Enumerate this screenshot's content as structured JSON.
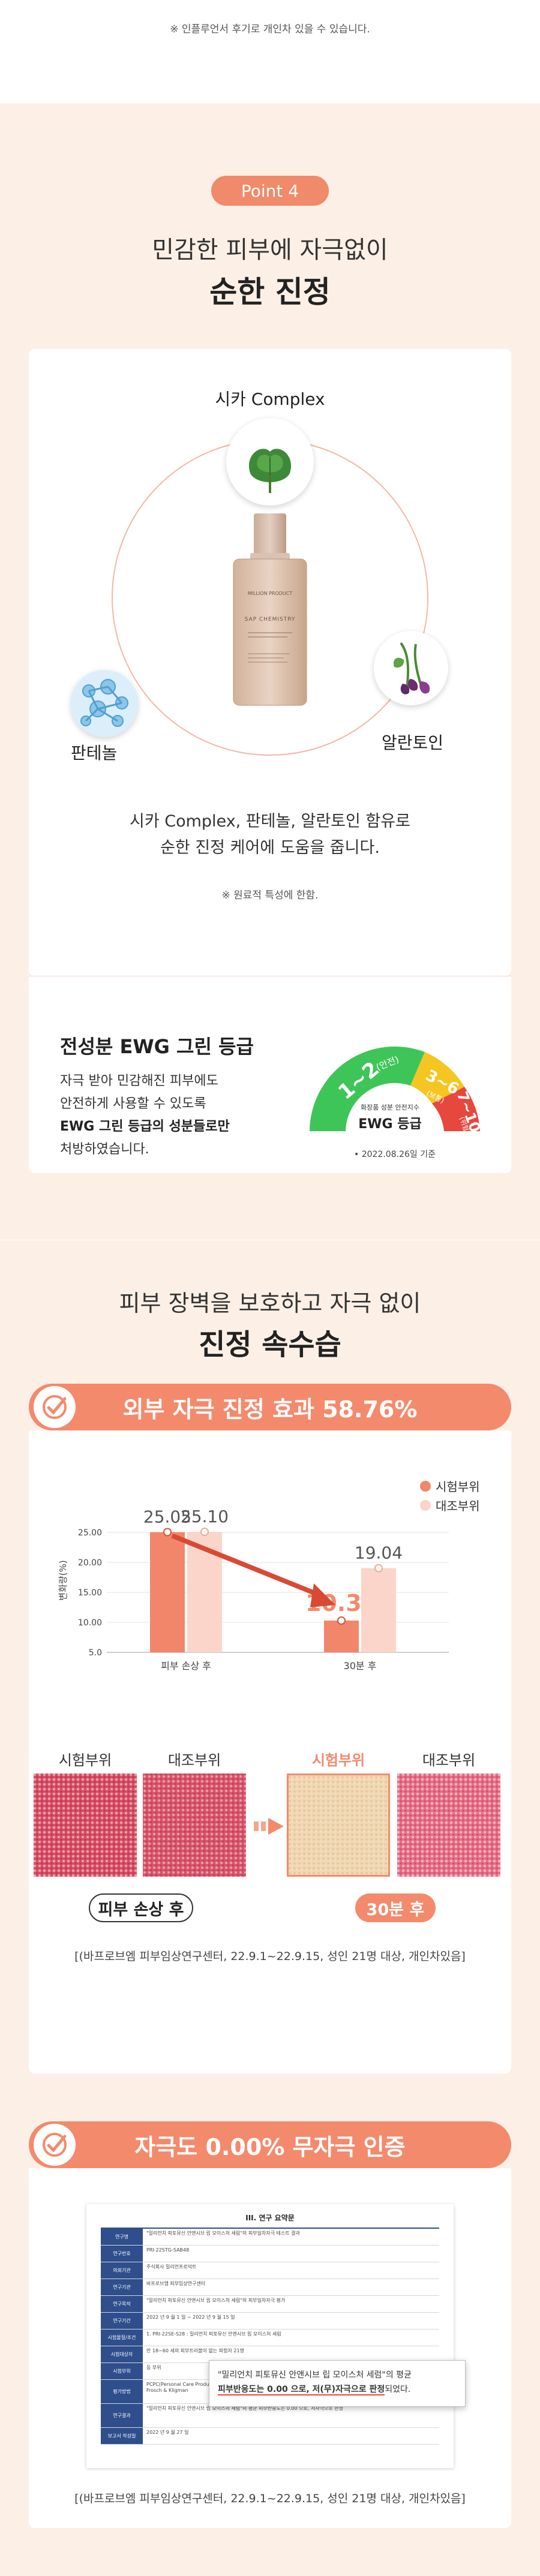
{
  "top_note": "※ 인플루언서 후기로 개인차 있을 수 있습니다.",
  "point_badge": "Point 4",
  "section1": {
    "headline_light": "민감한 피부에 자극없이",
    "headline_bold": "순한 진정",
    "ingredients": [
      {
        "label": "시카 Complex",
        "icon": "cica-leaf-icon"
      },
      {
        "label": "판테놀",
        "icon": "panthenol-molecule-icon"
      },
      {
        "label": "알란토인",
        "icon": "allantoin-plant-icon"
      }
    ],
    "bottle_brand": "MILLION PRODUCT",
    "bottle_name": "SAP CHEMISTRY",
    "desc_line1": "시카 Complex, 판테놀, 알란토인 함유로",
    "desc_line2": "순한 진정 케어에 도움을 줍니다.",
    "note": "※ 원료적 특성에 한함.",
    "ewg": {
      "title": "전성분 EWG 그린 등급",
      "line1": "자극 받아 민감해진 피부에도",
      "line2": "안전하게 사용할 수 있도록",
      "line3_bold": "EWG 그린 등급의 성분들로만",
      "line4": "처방하였습니다.",
      "gauge_green": "1~2",
      "gauge_green_sub": "(안전)",
      "gauge_yellow": "3~6",
      "gauge_yellow_sub": "(보통)",
      "gauge_red": "7~10",
      "gauge_red_sub": "(위험)",
      "gauge_caption_small": "화장품 성분 안전지수",
      "gauge_caption": "EWG 등급",
      "gauge_date": "• 2022.08.26일 기준"
    }
  },
  "section2": {
    "headline_light": "피부 장벽을 보호하고 자극 없이",
    "headline_bold": "진정 속수습",
    "banner1": "외부 자극 진정 효과 58.76%",
    "legend": [
      "시험부위",
      "대조부위"
    ],
    "colors": {
      "test": "#f2866a",
      "control": "#fbd5c9",
      "accent": "#f38a6c"
    },
    "ylabel": "변화량(%)",
    "yticks": [
      "25.00",
      "20.00",
      "15.00",
      "10.00",
      "5.0"
    ],
    "categories": [
      "피부 손상 후",
      "30분 후"
    ],
    "value_labels": [
      "25.05",
      "25.10",
      "10.30",
      "19.04"
    ],
    "skin_labels": [
      "시험부위",
      "대조부위",
      "시험부위",
      "대조부위"
    ],
    "tag_before": "피부 손상 후",
    "tag_after": "30분 후",
    "source": "[(바프로브엠 피부임상연구센터, 22.9.1~22.9.15, 성인 21명 대상, 개인차있음]",
    "banner2": "자극도 0.00% 무자극 인증",
    "doc_title": "III. 연구 요약문",
    "doc_rows": [
      {
        "k": "연구명",
        "v": "\"밀리언치 피토뮤신 안앤시브 립 모이스처 세럼\"의 피부일차자극 테스트 결과"
      },
      {
        "k": "연구번호",
        "v": "PRI-22STG-SAB48"
      },
      {
        "k": "의뢰기관",
        "v": "주식회사 밀리언프로덕트"
      },
      {
        "k": "연구기관",
        "v": "바프로브엠 피부임상연구센터"
      },
      {
        "k": "연구목적",
        "v": "\"밀리언치 피토뮤신 안앤시브 립 모이스처 세럼\"의 피부일차자극 평가"
      },
      {
        "k": "연구기간",
        "v": "2022 년 9 월 1 일 ~ 2022 년 9 월 15 일"
      },
      {
        "k": "시험물질/조건",
        "v": "1. PRI-22SE-S28 : 밀리언치 피토뮤신 안앤시브 립 모이스처 세럼"
      },
      {
        "k": "시험대상자",
        "v": "만 18~60 세의 피부트러블이 없는 피험자 21명"
      },
      {
        "k": "시험부위",
        "v": "등 부위"
      },
      {
        "k": "평가방법",
        "v": "PCPC(Personal Care Products Council) 가이드라인 및 ICDRG(International Contact Dermatitis Research Group)에 명시된 Frosch & Kligman"
      },
      {
        "k": "연구결과",
        "v": "\"밀리언치 피토뮤신 안앤시브 립 모이스처 세럼\"의 평균 피부반응도는 0.00 으로, 저자극으로 판정"
      },
      {
        "k": "보고서 작성일",
        "v": "2022 년 9 월 27 일"
      }
    ],
    "doc_callout_line1": "\"밀리언치 피토뮤신 안앤시브 립 모이스처 세럼\"의 평균",
    "doc_callout_line2_bold": "피부반응도는 0.00 으로, 저(무)자극으로 판정",
    "doc_callout_line2_tail": "되었다.",
    "source2": "[(바프로브엠 피부임상연구센터, 22.9.1~22.9.15, 성인 21명 대상, 개인차있음]"
  },
  "chart_data": {
    "type": "bar",
    "title": "",
    "categories": [
      "피부 손상 후",
      "30분 후"
    ],
    "series": [
      {
        "name": "시험부위",
        "values": [
          25.05,
          10.3
        ]
      },
      {
        "name": "대조부위",
        "values": [
          25.1,
          19.04
        ]
      }
    ],
    "xlabel": "",
    "ylabel": "변화량(%)",
    "ylim": [
      5,
      25
    ],
    "yticks": [
      5,
      10,
      15,
      20,
      25
    ],
    "grid": true,
    "legend": "top-right"
  }
}
